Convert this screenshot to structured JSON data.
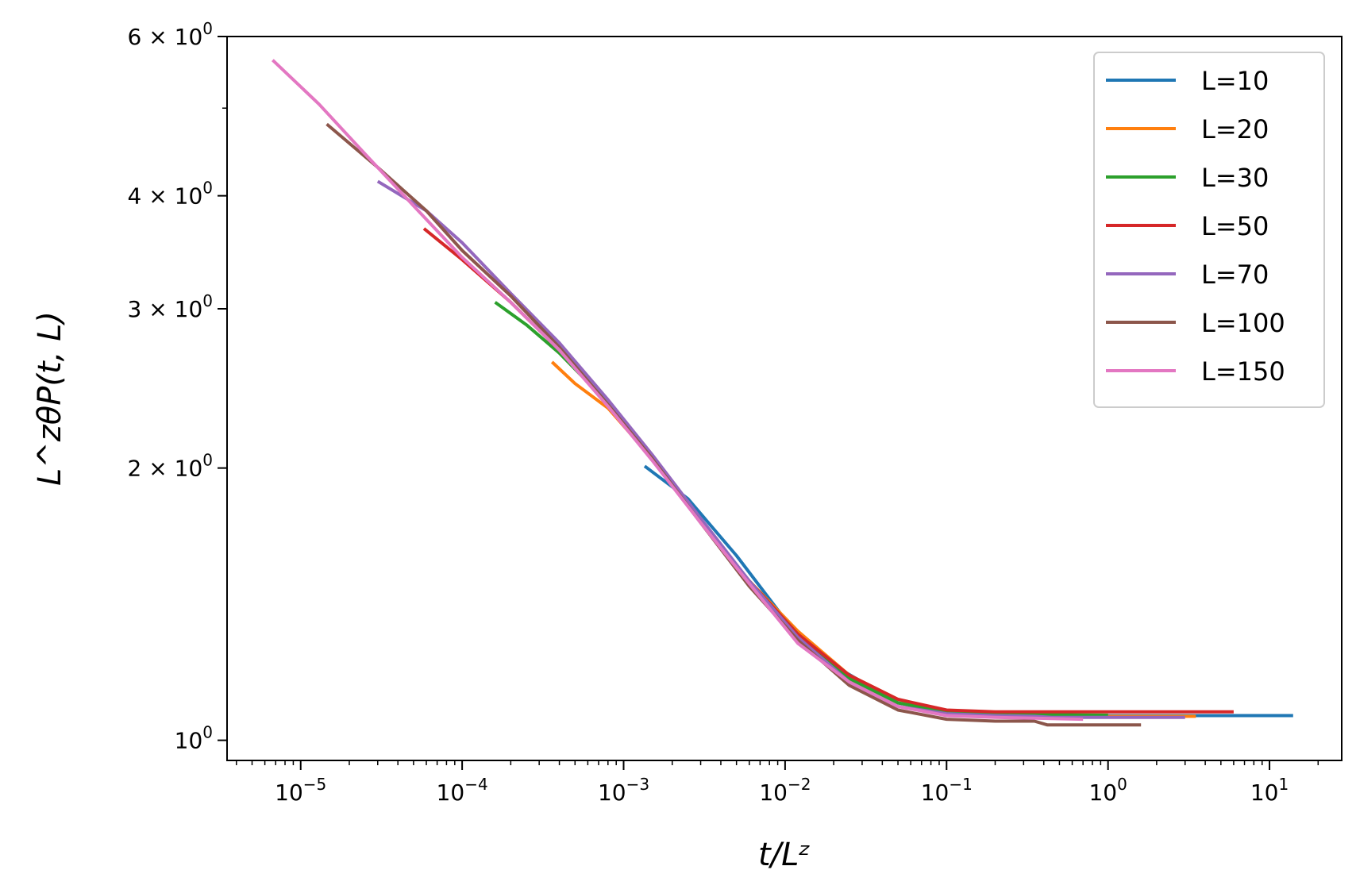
{
  "chart_data": {
    "type": "line",
    "title": "",
    "xlabel": "t/Lᶻ",
    "ylabel": "L^zθP(t, L)",
    "xscale": "log",
    "yscale": "log",
    "xlim": [
      3.5e-06,
      28
    ],
    "ylim": [
      0.95,
      6.0
    ],
    "grid": false,
    "legend_position": "top-right",
    "x_ticks": [
      {
        "value": 1e-05,
        "base": "10",
        "exp": "−5"
      },
      {
        "value": 0.0001,
        "base": "10",
        "exp": "−4"
      },
      {
        "value": 0.001,
        "base": "10",
        "exp": "−3"
      },
      {
        "value": 0.01,
        "base": "10",
        "exp": "−2"
      },
      {
        "value": 0.1,
        "base": "10",
        "exp": "−1"
      },
      {
        "value": 1,
        "base": "10",
        "exp": "0"
      },
      {
        "value": 10,
        "base": "10",
        "exp": "1"
      }
    ],
    "y_ticks": [
      {
        "value": 6,
        "base": "6 × 10",
        "exp": "0"
      },
      {
        "value": 4,
        "base": "4 × 10",
        "exp": "0"
      },
      {
        "value": 3,
        "base": "3 × 10",
        "exp": "0"
      },
      {
        "value": 2,
        "base": "2 × 10",
        "exp": "0"
      },
      {
        "value": 1,
        "base": "10",
        "exp": "0"
      }
    ],
    "series": [
      {
        "name": "L=10",
        "color": "#1f77b4",
        "x": [
          0.00135,
          0.0025,
          0.005,
          0.01,
          0.02,
          0.05,
          0.1,
          0.2,
          0.3,
          0.45,
          0.55,
          1,
          3,
          14
        ],
        "y": [
          2.01,
          1.85,
          1.6,
          1.36,
          1.21,
          1.1,
          1.075,
          1.07,
          1.07,
          1.07,
          1.065,
          1.065,
          1.065,
          1.065
        ]
      },
      {
        "name": "L=20",
        "color": "#ff7f0e",
        "x": [
          0.00036,
          0.0005,
          0.0008,
          0.0015,
          0.003,
          0.006,
          0.012,
          0.025,
          0.05,
          0.1,
          0.2,
          0.4,
          1,
          3.5
        ],
        "y": [
          2.62,
          2.48,
          2.33,
          2.05,
          1.75,
          1.5,
          1.32,
          1.18,
          1.11,
          1.075,
          1.07,
          1.065,
          1.063,
          1.063
        ]
      },
      {
        "name": "L=30",
        "color": "#2ca02c",
        "x": [
          0.00016,
          0.00025,
          0.0004,
          0.0007,
          0.0015,
          0.003,
          0.006,
          0.012,
          0.025,
          0.05,
          0.1,
          0.2,
          0.4,
          1
        ],
        "y": [
          3.05,
          2.88,
          2.68,
          2.42,
          2.05,
          1.75,
          1.5,
          1.31,
          1.17,
          1.1,
          1.075,
          1.07,
          1.068,
          1.066
        ]
      },
      {
        "name": "L=50",
        "color": "#d62728",
        "x": [
          5.8e-05,
          0.0001,
          0.0002,
          0.0004,
          0.0008,
          0.0015,
          0.003,
          0.006,
          0.012,
          0.025,
          0.05,
          0.1,
          0.2,
          0.5,
          1,
          6
        ],
        "y": [
          3.68,
          3.4,
          3.05,
          2.7,
          2.35,
          2.05,
          1.75,
          1.5,
          1.31,
          1.18,
          1.11,
          1.08,
          1.075,
          1.075,
          1.075,
          1.075
        ]
      },
      {
        "name": "L=70",
        "color": "#9467bd",
        "x": [
          3e-05,
          6e-05,
          0.0001,
          0.0002,
          0.0004,
          0.0008,
          0.0015,
          0.003,
          0.006,
          0.012,
          0.025,
          0.05,
          0.1,
          0.2,
          0.35,
          0.45,
          1,
          3
        ],
        "y": [
          4.15,
          3.85,
          3.55,
          3.12,
          2.75,
          2.38,
          2.07,
          1.76,
          1.5,
          1.3,
          1.16,
          1.09,
          1.07,
          1.065,
          1.063,
          1.06,
          1.06,
          1.06
        ]
      },
      {
        "name": "L=100",
        "color": "#8c564b",
        "x": [
          1.45e-05,
          3e-05,
          6e-05,
          0.0001,
          0.0002,
          0.0004,
          0.0008,
          0.0015,
          0.003,
          0.006,
          0.012,
          0.025,
          0.05,
          0.1,
          0.2,
          0.35,
          0.42,
          0.8,
          1.6
        ],
        "y": [
          4.8,
          4.3,
          3.85,
          3.48,
          3.1,
          2.72,
          2.35,
          2.05,
          1.74,
          1.48,
          1.29,
          1.15,
          1.08,
          1.055,
          1.05,
          1.05,
          1.04,
          1.04,
          1.04
        ]
      },
      {
        "name": "L=150",
        "color": "#e377c2",
        "x": [
          6.7e-06,
          1.3e-05,
          2.5e-05,
          5e-05,
          0.0001,
          0.0002,
          0.0004,
          0.0008,
          0.0015,
          0.003,
          0.006,
          0.012,
          0.025,
          0.05,
          0.1,
          0.2,
          0.35,
          0.7
        ],
        "y": [
          5.65,
          5.05,
          4.45,
          3.9,
          3.42,
          3.05,
          2.7,
          2.34,
          2.04,
          1.74,
          1.49,
          1.28,
          1.16,
          1.09,
          1.065,
          1.06,
          1.058,
          1.055
        ]
      }
    ]
  }
}
